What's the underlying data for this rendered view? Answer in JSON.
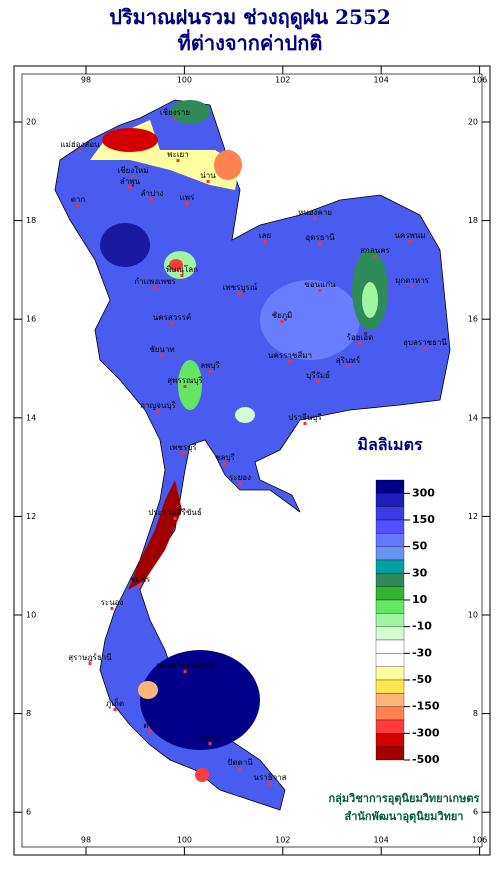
{
  "header": {
    "title": "ปริมาณฝนรวม ช่วงฤดูฝน 2552",
    "subtitle": "ที่ต่างจากค่าปกติ"
  },
  "map": {
    "lon_ticks": [
      98,
      100,
      102,
      104,
      106
    ],
    "lat_ticks": [
      20,
      18,
      16,
      14,
      12,
      10,
      8,
      6
    ],
    "places": [
      "เชียงราย",
      "แม่ฮ่องสอน",
      "พะเยา",
      "เชียงใหม่",
      "ลำพูน",
      "น่าน",
      "ลำปาง",
      "แพร่",
      "ตาก",
      "หนองคาย",
      "อุดรธานี",
      "เลย",
      "นครพนม",
      "สกลนคร",
      "มุกดาหาร",
      "พิษณุโลก",
      "กำแพงเพชร",
      "เพชรบูรณ์",
      "ขอนแก่น",
      "ชัยภูมิ",
      "นครสวรรค์",
      "ร้อยเอ็ด",
      "อุบลราชธานี",
      "ชัยนาท",
      "สุพรรณบุรี",
      "ลพบุรี",
      "นครราชสีมา",
      "สุรินทร์",
      "บุรีรัมย์",
      "กาญจนบุรี",
      "ปราจีนบุรี",
      "เพชรบุรี",
      "ชลบุรี",
      "ระยอง",
      "ประจวบคีรีขันธ์",
      "ชุมพร",
      "ระนอง",
      "สุราษฎร์ธานี",
      "นครศรีธรรมราช",
      "ภูเก็ต",
      "ตรัง",
      "สงขลา",
      "ปัตตานี",
      "นราธิวาส"
    ]
  },
  "legend": {
    "title": "มิลลิเมตร",
    "labels": [
      "300",
      "150",
      "50",
      "30",
      "10",
      "-10",
      "-30",
      "-50",
      "-150",
      "-300",
      "-500"
    ],
    "colors": [
      "#00008b",
      "#1e1ebe",
      "#3c3ce6",
      "#5050ff",
      "#6478ff",
      "#6496f0",
      "#00a0a0",
      "#2e8b57",
      "#32b432",
      "#64e664",
      "#a0f5a0",
      "#d2ffd2",
      "#ffffff",
      "#ffffff",
      "#ffffa0",
      "#ffe650",
      "#ffb478",
      "#ff8250",
      "#ff3c3c",
      "#d20000",
      "#a00000",
      "#780000"
    ]
  },
  "credits": [
    "กลุ่มวิชาการอุตุนิยมวิทยาเกษตร",
    "สำนักพัฒนาอุตุนิยมวิทยา"
  ]
}
